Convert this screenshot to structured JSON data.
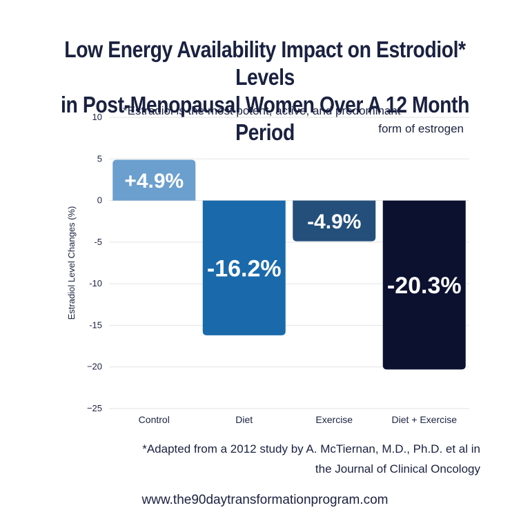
{
  "chart_data": {
    "type": "bar",
    "title_line1": "Low Energy Availability Impact on Estrodiol* Levels",
    "title_line2": "in Post-Menopausal Women Over A 12 Month Period",
    "note_line1": "*Estradiol is the most potent, active, and predominant",
    "note_line2": "form of estrogen",
    "ylabel": "Estradiol Level Changes (%)",
    "xlabel": "",
    "ylim": [
      -25,
      10
    ],
    "yticks": [
      10,
      5,
      0,
      -5,
      -10,
      -15,
      -20,
      -25
    ],
    "ytick_labels": [
      "10",
      "5",
      "0",
      "-5",
      "-10",
      "-15",
      "−20",
      "−25"
    ],
    "categories": [
      "Control",
      "Diet",
      "Exercise",
      "Diet + Exercise"
    ],
    "values": [
      4.9,
      -16.2,
      -4.9,
      -20.3
    ],
    "data_labels": [
      "+4.9%",
      "-16.2%",
      "-4.9%",
      "-20.3%"
    ],
    "colors": [
      "#6b9fce",
      "#1a6aab",
      "#244f7b",
      "#0c1130"
    ],
    "grid": true
  },
  "source": {
    "line1": "*Adapted from a 2012 study by A. McTiernan, M.D., Ph.D. et al in",
    "line2": "the  Journal of Clinical Oncology"
  },
  "website": "www.the90daytransformationprogram.com"
}
